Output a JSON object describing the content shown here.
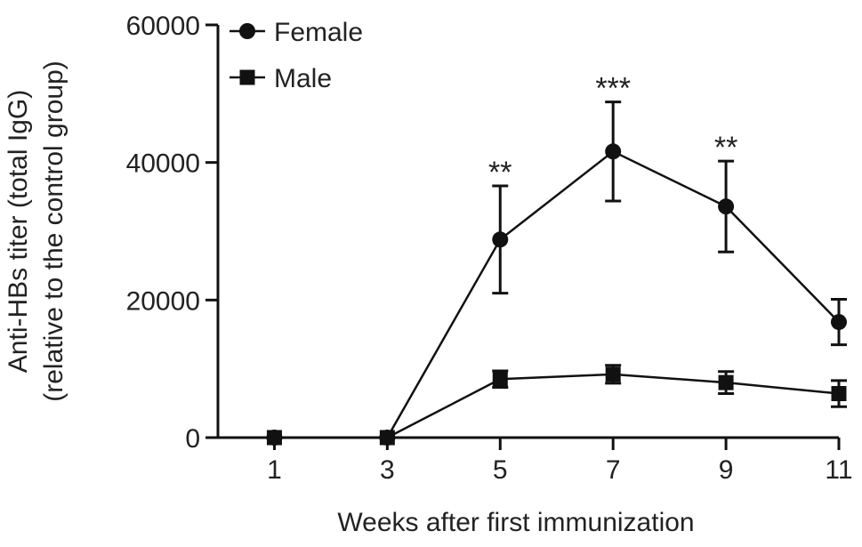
{
  "chart_data": {
    "type": "line",
    "x": [
      1,
      3,
      5,
      7,
      9,
      11
    ],
    "xlabel": "Weeks after first immunization",
    "ylabel_lines": [
      "Anti-HBs titer (total IgG)",
      "(relative to the control group)"
    ],
    "xlim": [
      0,
      11
    ],
    "ylim": [
      0,
      60000
    ],
    "xticks": [
      1,
      3,
      5,
      7,
      9,
      11
    ],
    "yticks": [
      0,
      20000,
      40000,
      60000
    ],
    "grid": false,
    "legend_position": "top-left",
    "series": [
      {
        "name": "Female",
        "marker": "circle",
        "values": [
          0,
          0,
          28800,
          41600,
          33600,
          16800
        ],
        "error": [
          0,
          0,
          7800,
          7200,
          6600,
          3300
        ]
      },
      {
        "name": "Male",
        "marker": "square",
        "values": [
          0,
          0,
          8500,
          9200,
          8000,
          6400
        ],
        "error": [
          0,
          0,
          1200,
          1300,
          1600,
          1900
        ]
      }
    ],
    "annotations": [
      {
        "x": 5,
        "text": "**"
      },
      {
        "x": 7,
        "text": "***"
      },
      {
        "x": 9,
        "text": "**"
      }
    ],
    "colors": {
      "line": "#111111",
      "text": "#222222"
    }
  }
}
